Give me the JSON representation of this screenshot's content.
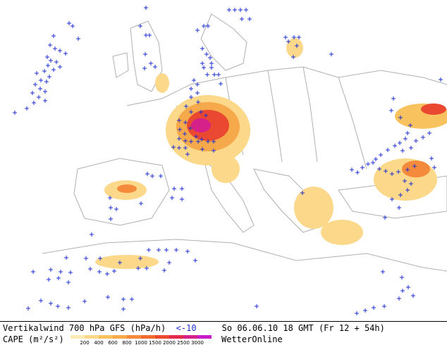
{
  "footer": {
    "title": "Vertikalwind 700 hPa GFS (hPa/h)",
    "threshold": "<-10",
    "valid_time": "So 06.06.10 18 GMT (Fr 12 + 54h)",
    "cape_label": "CAPE (m²/s²)",
    "brand": "WetterOnline"
  },
  "legend": {
    "ticks": [
      "200",
      "400",
      "600",
      "800",
      "1000",
      "1500",
      "2000",
      "2500",
      "3000"
    ],
    "colors": [
      "#fde9b6",
      "#fbd88a",
      "#f8c35e",
      "#f6a94a",
      "#f48a3c",
      "#f06a30",
      "#ea4830",
      "#e32a48",
      "#d6208a",
      "#c81cc8"
    ]
  },
  "map": {
    "land_color": "#ffffff",
    "sea_color": "#ffffff",
    "border_color": "#b0b0b0",
    "marker_color": "#1f2fd0",
    "marker_symbol": "+"
  }
}
